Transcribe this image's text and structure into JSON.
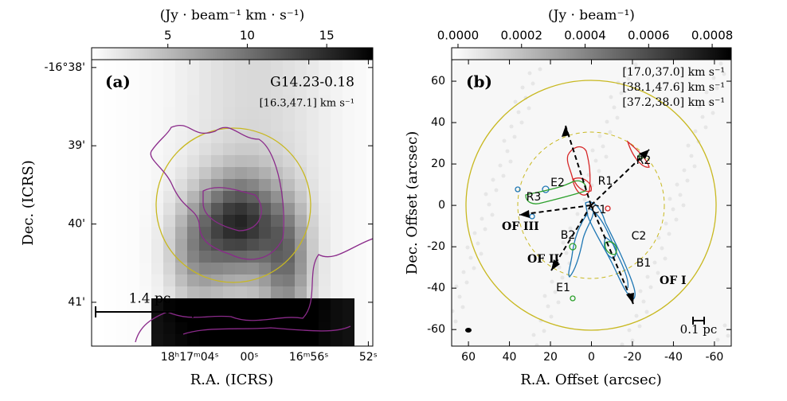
{
  "chart_data": [
    {
      "type": "image",
      "panel_label": "(a)",
      "title": "G14.23-0.18",
      "subtitle": "[16.3,47.1] km s⁻¹",
      "scale_label": "1.4 pc",
      "x_label": "R.A. (ICRS)",
      "y_label": "Dec. (ICRS)",
      "xlim": [
        70.6,
        51.7
      ],
      "xticks": [
        {
          "value": 64,
          "label": "18ʰ17ᵐ04ˢ"
        },
        {
          "value": 60,
          "label": "00ˢ"
        },
        {
          "value": 56,
          "label": "16ᵐ56ˢ"
        },
        {
          "value": 52,
          "label": "52ˢ"
        }
      ],
      "ylim": [
        41.56,
        37.9
      ],
      "yticks": [
        {
          "value": 38,
          "label": "-16°38'"
        },
        {
          "value": 39,
          "label": "39'"
        },
        {
          "value": 40,
          "label": "40'"
        },
        {
          "value": 41,
          "label": "41'"
        }
      ],
      "colorbar": {
        "label": "(Jy · beam⁻¹ km · s⁻¹)",
        "lim": [
          0.2,
          17.9
        ],
        "ticks": [
          5,
          10,
          15
        ],
        "colors": [
          "#ffffff",
          "#000000"
        ]
      },
      "contour_color": "#8a2a8a",
      "circle_color": "#c8b820"
    },
    {
      "type": "image",
      "panel_label": "(b)",
      "scale_label": "0.1 pc",
      "x_label": "R.A. Offset (arcsec)",
      "y_label": "Dec. Offset (arcsec)",
      "xlim": [
        68.2,
        -68.2
      ],
      "xticks": [
        60,
        40,
        20,
        0,
        -20,
        -40,
        -60
      ],
      "ylim": [
        -68,
        70.4
      ],
      "yticks": [
        60,
        40,
        20,
        0,
        -20,
        -40,
        -60
      ],
      "colorbar": {
        "label": "(Jy · beam⁻¹)",
        "lim": [
          -2e-05,
          0.00086
        ],
        "ticks": [
          {
            "value": 0,
            "label": "0.0000"
          },
          {
            "value": 0.0002,
            "label": "0.0002"
          },
          {
            "value": 0.0004,
            "label": "0.0004"
          },
          {
            "value": 0.0006,
            "label": "0.0006"
          },
          {
            "value": 0.0008,
            "label": "0.0008"
          }
        ],
        "colors": [
          "#ffffff",
          "#000000"
        ]
      },
      "series": [
        {
          "name": "[17.0,37.0] km s⁻¹",
          "color": "#1f77b4"
        },
        {
          "name": "[38.1,47.6] km s⁻¹",
          "color": "#d62728"
        },
        {
          "name": "[37.2,38.0] km s⁻¹",
          "color": "#2ca02c"
        }
      ],
      "sources": [
        "R1",
        "R2",
        "R3",
        "E2",
        "C1",
        "C2",
        "B2",
        "B1",
        "E1"
      ],
      "outflows": [
        "OF I",
        "OF II",
        "OF III"
      ],
      "circle_color": "#c8b820"
    }
  ]
}
